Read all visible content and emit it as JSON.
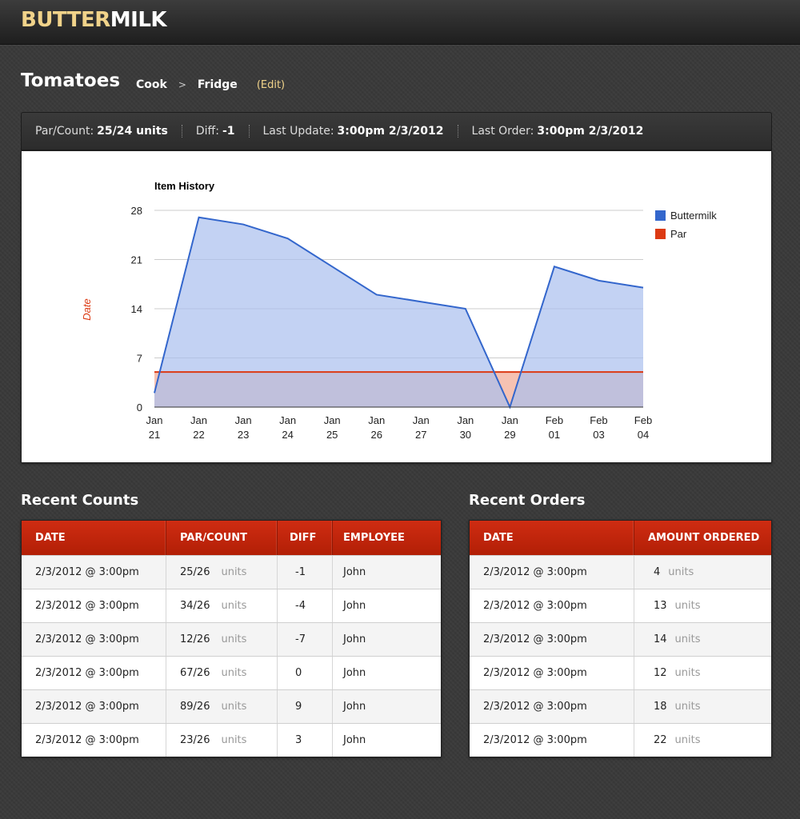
{
  "app": {
    "logo_part1": "BUTTER",
    "logo_part2": "MILK"
  },
  "header": {
    "title": "Tomatoes",
    "breadcrumb": [
      "Cook",
      "Fridge"
    ],
    "breadcrumb_sep": ">",
    "edit_label": "(Edit)"
  },
  "stats": [
    {
      "label": "Par/Count:",
      "value": "25/24 units"
    },
    {
      "label": "Diff:",
      "value": "-1"
    },
    {
      "label": "Last Update:",
      "value": "3:00pm 2/3/2012"
    },
    {
      "label": "Last Order:",
      "value": "3:00pm 2/3/2012"
    }
  ],
  "chart_data": {
    "type": "area",
    "title": "Item History",
    "ylabel": "Date",
    "xlabel": "",
    "categories": [
      [
        "Jan",
        "21"
      ],
      [
        "Jan",
        "22"
      ],
      [
        "Jan",
        "23"
      ],
      [
        "Jan",
        "24"
      ],
      [
        "Jan",
        "25"
      ],
      [
        "Jan",
        "26"
      ],
      [
        "Jan",
        "27"
      ],
      [
        "Jan",
        "30"
      ],
      [
        "Jan",
        "29"
      ],
      [
        "Feb",
        "01"
      ],
      [
        "Feb",
        "03"
      ],
      [
        "Feb",
        "04"
      ]
    ],
    "yticks": [
      0,
      7,
      14,
      21,
      28
    ],
    "ylim": [
      0,
      28
    ],
    "grid": true,
    "legend_position": "right",
    "series": [
      {
        "name": "Buttermilk",
        "color": "#3366cc",
        "fill": "#c5d3f2",
        "values": [
          2,
          27,
          26,
          24,
          20,
          16,
          15,
          14,
          0,
          20,
          18,
          17
        ]
      },
      {
        "name": "Par",
        "color": "#dc3912",
        "fill": "#c7a2aa",
        "values": [
          5,
          5,
          5,
          5,
          5,
          5,
          5,
          5,
          5,
          5,
          5,
          5
        ]
      }
    ]
  },
  "recent_counts": {
    "title": "Recent Counts",
    "columns": [
      "DATE",
      "PAR/COUNT",
      "DIFF",
      "EMPLOYEE"
    ],
    "units_label": "units",
    "rows": [
      {
        "date": "2/3/2012 @ 3:00pm",
        "par_count": "25/26",
        "diff": "-1",
        "employee": "John"
      },
      {
        "date": "2/3/2012 @ 3:00pm",
        "par_count": "34/26",
        "diff": "-4",
        "employee": "John"
      },
      {
        "date": "2/3/2012 @ 3:00pm",
        "par_count": "12/26",
        "diff": "-7",
        "employee": "John"
      },
      {
        "date": "2/3/2012 @ 3:00pm",
        "par_count": "67/26",
        "diff": "0",
        "employee": "John"
      },
      {
        "date": "2/3/2012 @ 3:00pm",
        "par_count": "89/26",
        "diff": "9",
        "employee": "John"
      },
      {
        "date": "2/3/2012 @ 3:00pm",
        "par_count": "23/26",
        "diff": "3",
        "employee": "John"
      }
    ]
  },
  "recent_orders": {
    "title": "Recent Orders",
    "columns": [
      "DATE",
      "AMOUNT ORDERED"
    ],
    "units_label": "units",
    "rows": [
      {
        "date": "2/3/2012 @ 3:00pm",
        "amount": "4"
      },
      {
        "date": "2/3/2012 @ 3:00pm",
        "amount": "13"
      },
      {
        "date": "2/3/2012 @ 3:00pm",
        "amount": "14"
      },
      {
        "date": "2/3/2012 @ 3:00pm",
        "amount": "12"
      },
      {
        "date": "2/3/2012 @ 3:00pm",
        "amount": "18"
      },
      {
        "date": "2/3/2012 @ 3:00pm",
        "amount": "22"
      }
    ]
  }
}
